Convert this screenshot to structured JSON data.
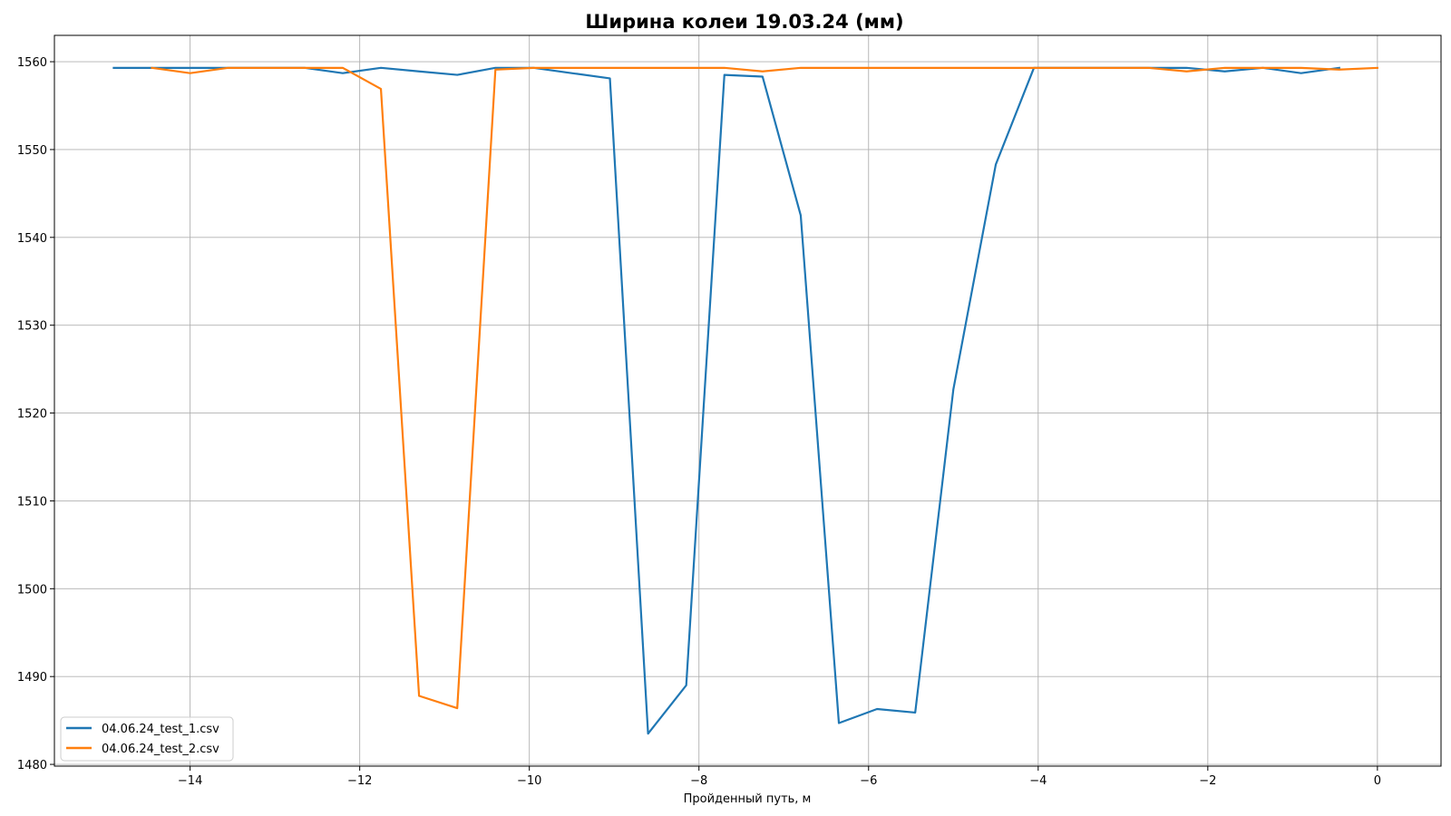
{
  "chart_data": {
    "type": "line",
    "title": "Ширина колеи 19.03.24 (мм)",
    "xlabel": "Пройденный путь, м",
    "ylabel": "",
    "xlim": [
      -15.6,
      0.75
    ],
    "ylim": [
      1479.8,
      1563.0
    ],
    "xticks": [
      -14,
      -12,
      -10,
      -8,
      -6,
      -4,
      -2,
      0
    ],
    "xtick_labels": [
      "−14",
      "−12",
      "−10",
      "−8",
      "−6",
      "−4",
      "−2",
      "0"
    ],
    "yticks": [
      1480,
      1490,
      1500,
      1510,
      1520,
      1530,
      1540,
      1550,
      1560
    ],
    "ytick_labels": [
      "1480",
      "1490",
      "1500",
      "1510",
      "1520",
      "1530",
      "1540",
      "1550",
      "1560"
    ],
    "grid": true,
    "legend_position": "lower-left",
    "series": [
      {
        "name": "04.06.24_test_1.csv",
        "color": "#1f77b4",
        "x": [
          -14.9,
          -14.45,
          -14.0,
          -13.55,
          -13.1,
          -12.65,
          -12.2,
          -11.75,
          -11.3,
          -10.85,
          -10.4,
          -9.95,
          -9.5,
          -9.05,
          -8.6,
          -8.15,
          -7.7,
          -7.25,
          -6.8,
          -6.35,
          -5.9,
          -5.45,
          -5.0,
          -4.5,
          -4.05,
          -3.6,
          -3.15,
          -2.7,
          -2.25,
          -1.8,
          -1.35,
          -0.9,
          -0.45
        ],
        "y": [
          1559.3,
          1559.3,
          1559.3,
          1559.3,
          1559.3,
          1559.3,
          1558.7,
          1559.3,
          1558.9,
          1558.5,
          1559.3,
          1559.3,
          1558.7,
          1558.1,
          1483.5,
          1489.0,
          1558.5,
          1558.3,
          1542.5,
          1484.7,
          1486.3,
          1485.9,
          1522.7,
          1548.3,
          1559.3,
          1559.3,
          1559.3,
          1559.3,
          1559.3,
          1558.9,
          1559.3,
          1558.7,
          1559.3
        ]
      },
      {
        "name": "04.06.24_test_2.csv",
        "color": "#ff7f0e",
        "x": [
          -14.45,
          -14.0,
          -13.55,
          -13.1,
          -12.65,
          -12.2,
          -11.75,
          -11.3,
          -10.85,
          -10.4,
          -9.95,
          -9.5,
          -9.05,
          -8.6,
          -8.15,
          -7.7,
          -7.25,
          -6.8,
          -6.35,
          -5.9,
          -5.45,
          -5.0,
          -4.5,
          -4.05,
          -3.6,
          -3.15,
          -2.7,
          -2.25,
          -1.8,
          -1.35,
          -0.9,
          -0.45,
          0.0
        ],
        "y": [
          1559.3,
          1558.7,
          1559.3,
          1559.3,
          1559.3,
          1559.3,
          1556.9,
          1487.8,
          1486.4,
          1559.1,
          1559.3,
          1559.3,
          1559.3,
          1559.3,
          1559.3,
          1559.3,
          1558.9,
          1559.3,
          1559.3,
          1559.3,
          1559.3,
          1559.3,
          1559.3,
          1559.3,
          1559.3,
          1559.3,
          1559.3,
          1558.9,
          1559.3,
          1559.3,
          1559.3,
          1559.1,
          1559.3
        ]
      }
    ]
  }
}
